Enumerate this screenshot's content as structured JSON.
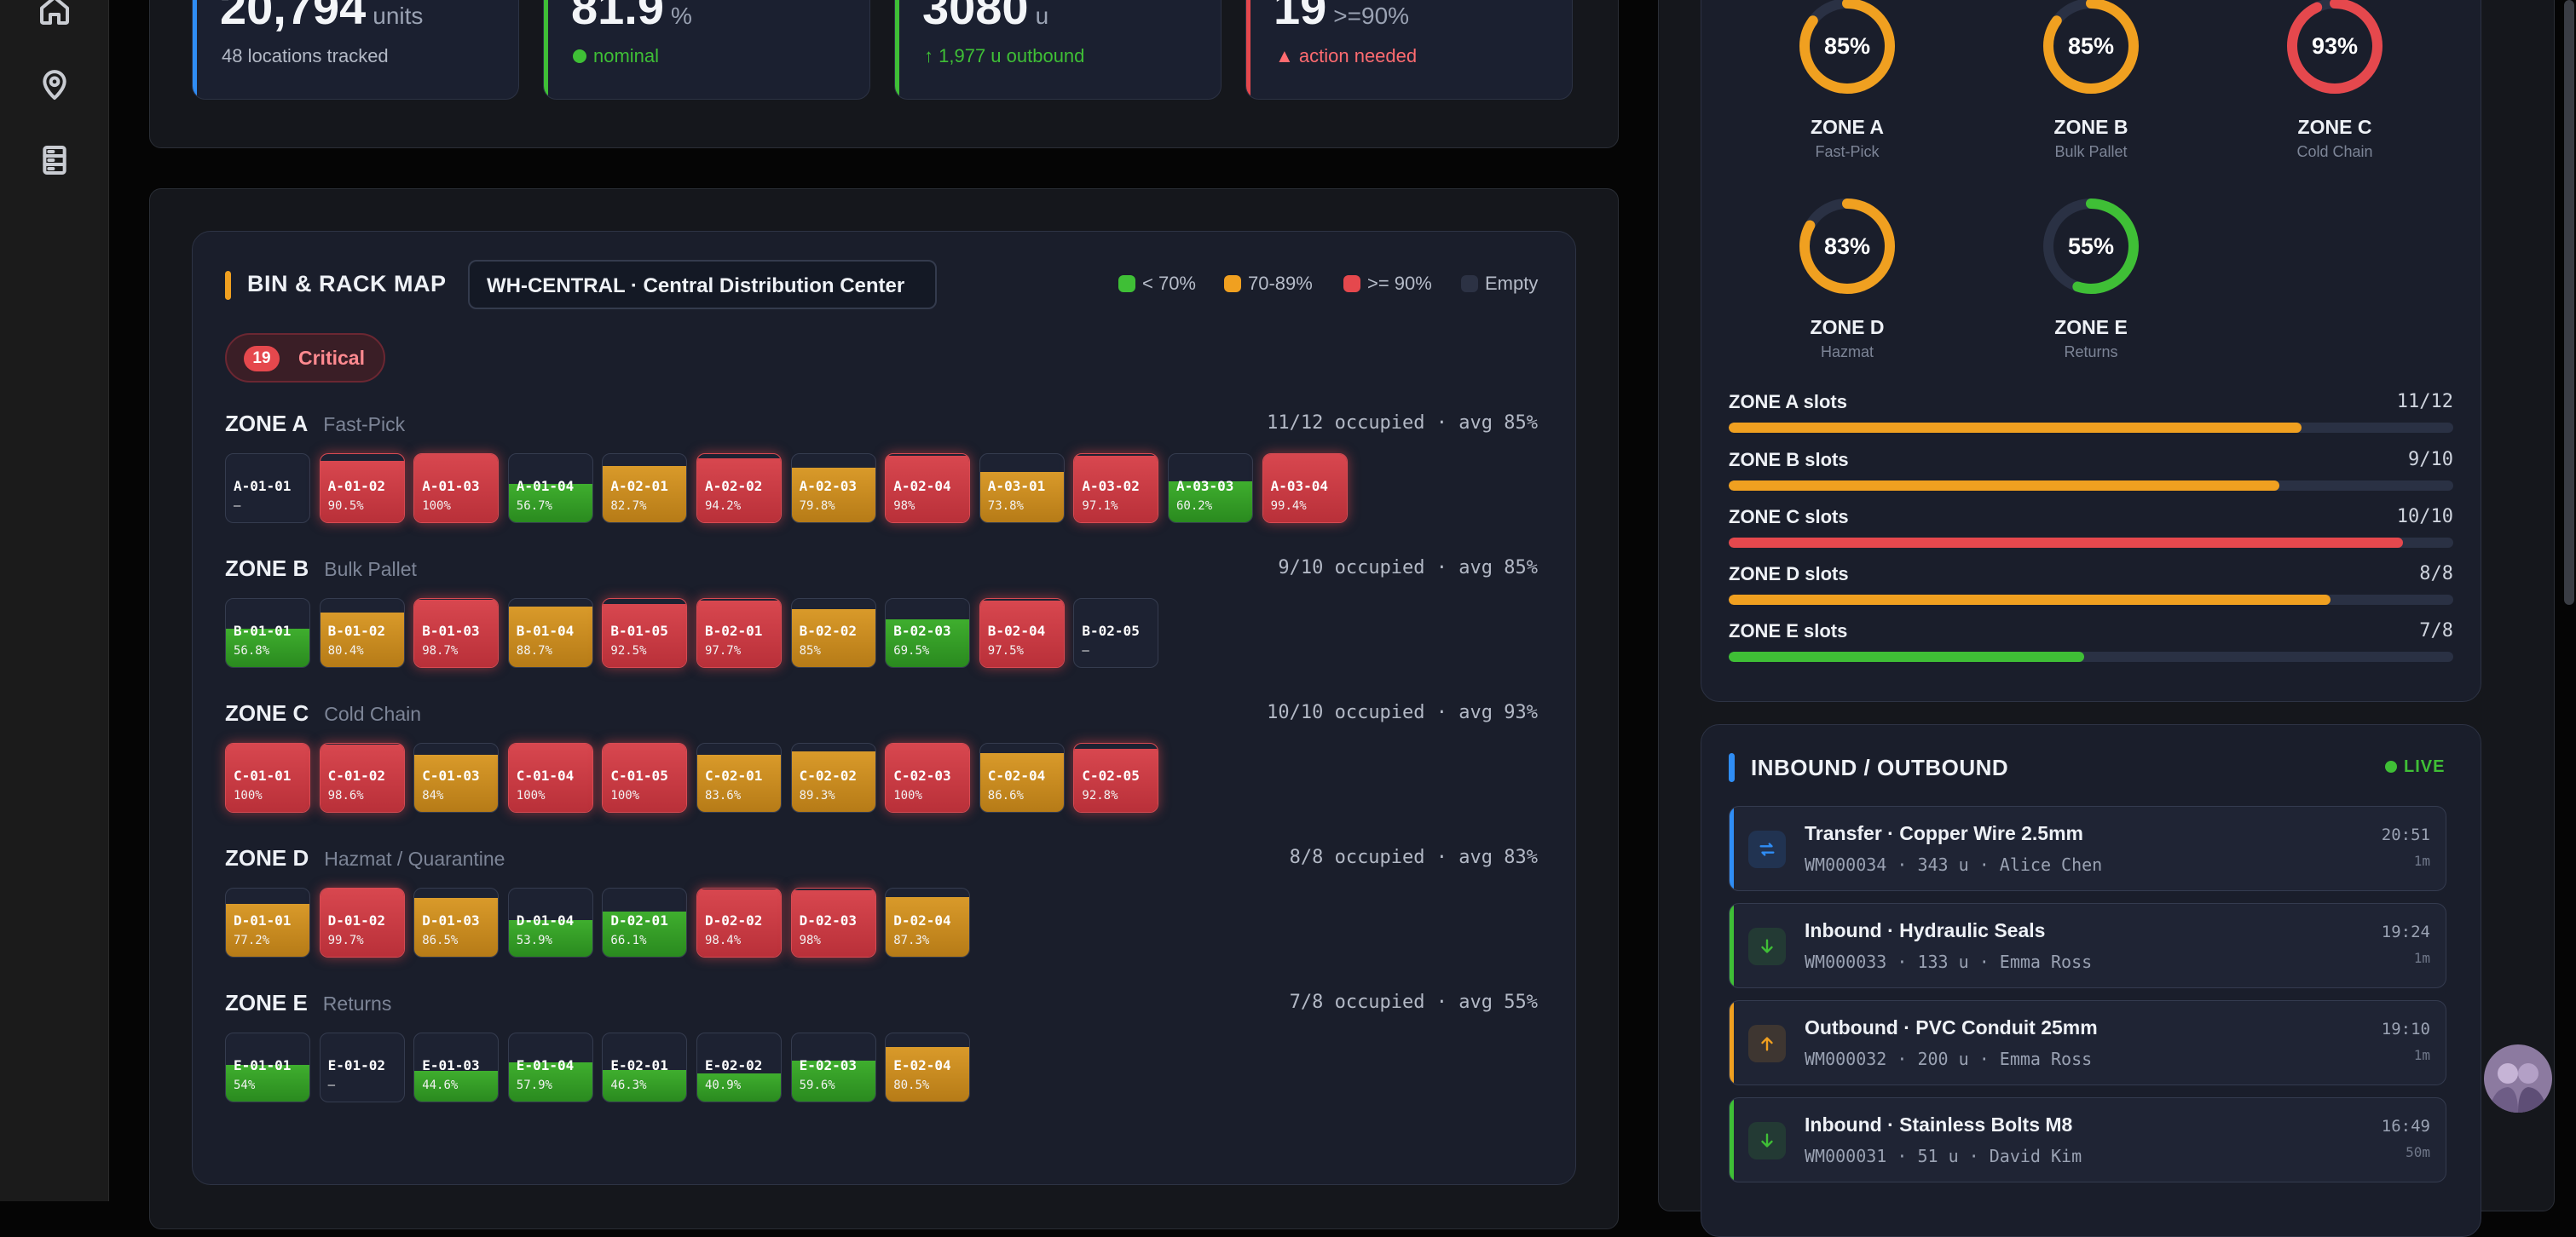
{
  "rail": {
    "icons": [
      "home-icon",
      "location-pin-icon",
      "server-rack-icon"
    ]
  },
  "stats": [
    {
      "value": "20,794",
      "unit": "units",
      "sub": "48 locations tracked",
      "accent": "#2f8df5",
      "sub_color": "#b3b9c6",
      "marker": ""
    },
    {
      "value": "81.9",
      "unit": "%",
      "sub": "nominal",
      "accent": "#3fbf36",
      "sub_color": "#3fbf36",
      "marker": "dot"
    },
    {
      "value": "3080",
      "unit": "u",
      "sub": "1,977 u outbound",
      "accent": "#3fbf36",
      "sub_color": "#3fbf36",
      "marker": "↑"
    },
    {
      "value": "19",
      "unit": ">=90%",
      "sub": "action needed",
      "accent": "#e5484d",
      "sub_color": "#ff6b70",
      "marker": "▲"
    }
  ],
  "bin_map": {
    "title": "BIN & RACK MAP",
    "warehouse": "WH-CENTRAL · Central Distribution Center",
    "legend": [
      {
        "label": "< 70%",
        "color": "#3fbf36"
      },
      {
        "label": "70-89%",
        "color": "#f0a020"
      },
      {
        "label": ">= 90%",
        "color": "#e5484d"
      },
      {
        "label": "Empty",
        "color": "#2c3244"
      }
    ],
    "critical_count": "19",
    "critical_label": "Critical",
    "zones": [
      {
        "name": "ZONE A",
        "sub": "Fast-Pick",
        "stat": "11/12 occupied · avg 85%",
        "bins": [
          {
            "code": "A-01-01",
            "pct": "–",
            "value": 0
          },
          {
            "code": "A-01-02",
            "pct": "90.5%",
            "value": 90.5
          },
          {
            "code": "A-01-03",
            "pct": "100%",
            "value": 100
          },
          {
            "code": "A-01-04",
            "pct": "56.7%",
            "value": 56.7
          },
          {
            "code": "A-02-01",
            "pct": "82.7%",
            "value": 82.7
          },
          {
            "code": "A-02-02",
            "pct": "94.2%",
            "value": 94.2
          },
          {
            "code": "A-02-03",
            "pct": "79.8%",
            "value": 79.8
          },
          {
            "code": "A-02-04",
            "pct": "98%",
            "value": 98
          },
          {
            "code": "A-03-01",
            "pct": "73.8%",
            "value": 73.8
          },
          {
            "code": "A-03-02",
            "pct": "97.1%",
            "value": 97.1
          },
          {
            "code": "A-03-03",
            "pct": "60.2%",
            "value": 60.2
          },
          {
            "code": "A-03-04",
            "pct": "99.4%",
            "value": 99.4
          }
        ]
      },
      {
        "name": "ZONE B",
        "sub": "Bulk Pallet",
        "stat": "9/10 occupied · avg 85%",
        "bins": [
          {
            "code": "B-01-01",
            "pct": "56.8%",
            "value": 56.8
          },
          {
            "code": "B-01-02",
            "pct": "80.4%",
            "value": 80.4
          },
          {
            "code": "B-01-03",
            "pct": "98.7%",
            "value": 98.7
          },
          {
            "code": "B-01-04",
            "pct": "88.7%",
            "value": 88.7
          },
          {
            "code": "B-01-05",
            "pct": "92.5%",
            "value": 92.5
          },
          {
            "code": "B-02-01",
            "pct": "97.7%",
            "value": 97.7
          },
          {
            "code": "B-02-02",
            "pct": "85%",
            "value": 85
          },
          {
            "code": "B-02-03",
            "pct": "69.5%",
            "value": 69.5
          },
          {
            "code": "B-02-04",
            "pct": "97.5%",
            "value": 97.5
          },
          {
            "code": "B-02-05",
            "pct": "–",
            "value": 0
          }
        ]
      },
      {
        "name": "ZONE C",
        "sub": "Cold Chain",
        "stat": "10/10 occupied · avg 93%",
        "bins": [
          {
            "code": "C-01-01",
            "pct": "100%",
            "value": 100
          },
          {
            "code": "C-01-02",
            "pct": "98.6%",
            "value": 98.6
          },
          {
            "code": "C-01-03",
            "pct": "84%",
            "value": 84
          },
          {
            "code": "C-01-04",
            "pct": "100%",
            "value": 100
          },
          {
            "code": "C-01-05",
            "pct": "100%",
            "value": 100
          },
          {
            "code": "C-02-01",
            "pct": "83.6%",
            "value": 83.6
          },
          {
            "code": "C-02-02",
            "pct": "89.3%",
            "value": 89.3
          },
          {
            "code": "C-02-03",
            "pct": "100%",
            "value": 100
          },
          {
            "code": "C-02-04",
            "pct": "86.6%",
            "value": 86.6
          },
          {
            "code": "C-02-05",
            "pct": "92.8%",
            "value": 92.8
          }
        ]
      },
      {
        "name": "ZONE D",
        "sub": "Hazmat / Quarantine",
        "stat": "8/8 occupied · avg 83%",
        "bins": [
          {
            "code": "D-01-01",
            "pct": "77.2%",
            "value": 77.2
          },
          {
            "code": "D-01-02",
            "pct": "99.7%",
            "value": 99.7
          },
          {
            "code": "D-01-03",
            "pct": "86.5%",
            "value": 86.5
          },
          {
            "code": "D-01-04",
            "pct": "53.9%",
            "value": 53.9
          },
          {
            "code": "D-02-01",
            "pct": "66.1%",
            "value": 66.1
          },
          {
            "code": "D-02-02",
            "pct": "98.4%",
            "value": 98.4
          },
          {
            "code": "D-02-03",
            "pct": "98%",
            "value": 98
          },
          {
            "code": "D-02-04",
            "pct": "87.3%",
            "value": 87.3
          }
        ]
      },
      {
        "name": "ZONE E",
        "sub": "Returns",
        "stat": "7/8 occupied · avg 55%",
        "bins": [
          {
            "code": "E-01-01",
            "pct": "54%",
            "value": 54
          },
          {
            "code": "E-01-02",
            "pct": "–",
            "value": 0
          },
          {
            "code": "E-01-03",
            "pct": "44.6%",
            "value": 44.6
          },
          {
            "code": "E-01-04",
            "pct": "57.9%",
            "value": 57.9
          },
          {
            "code": "E-02-01",
            "pct": "46.3%",
            "value": 46.3
          },
          {
            "code": "E-02-02",
            "pct": "40.9%",
            "value": 40.9
          },
          {
            "code": "E-02-03",
            "pct": "59.6%",
            "value": 59.6
          },
          {
            "code": "E-02-04",
            "pct": "80.5%",
            "value": 80.5
          }
        ]
      }
    ]
  },
  "zone_rings": [
    {
      "pct": "85%",
      "value": 85,
      "name": "ZONE A",
      "sub": "Fast-Pick",
      "color": "#f0a020"
    },
    {
      "pct": "85%",
      "value": 85,
      "name": "ZONE B",
      "sub": "Bulk Pallet",
      "color": "#f0a020"
    },
    {
      "pct": "93%",
      "value": 93,
      "name": "ZONE C",
      "sub": "Cold Chain",
      "color": "#e5484d"
    },
    {
      "pct": "83%",
      "value": 83,
      "name": "ZONE D",
      "sub": "Hazmat",
      "color": "#f0a020"
    },
    {
      "pct": "55%",
      "value": 55,
      "name": "ZONE E",
      "sub": "Returns",
      "color": "#3fbf36"
    }
  ],
  "slots": [
    {
      "label": "ZONE A slots",
      "count": "11/12",
      "value": 0.79,
      "color": "#f0a020"
    },
    {
      "label": "ZONE B slots",
      "count": "9/10",
      "value": 0.76,
      "color": "#f0a020"
    },
    {
      "label": "ZONE C slots",
      "count": "10/10",
      "value": 0.93,
      "color": "#e5484d"
    },
    {
      "label": "ZONE D slots",
      "count": "8/8",
      "value": 0.83,
      "color": "#f0a020"
    },
    {
      "label": "ZONE E slots",
      "count": "7/8",
      "value": 0.49,
      "color": "#3fbf36"
    }
  ],
  "io": {
    "title": "INBOUND / OUTBOUND",
    "live": "LIVE",
    "items": [
      {
        "type": "transfer",
        "icon": "transfer-arrows-icon",
        "name": "Transfer · Copper Wire 2.5mm",
        "meta": "WM000034 · 343 u · Alice Chen",
        "time": "20:51",
        "ago": "1m",
        "accent": "#2f8df5"
      },
      {
        "type": "inbound",
        "icon": "arrow-down-icon",
        "name": "Inbound · Hydraulic Seals",
        "meta": "WM000033 · 133 u · Emma Ross",
        "time": "19:24",
        "ago": "1m",
        "accent": "#3fbf36"
      },
      {
        "type": "outbound",
        "icon": "arrow-up-icon",
        "name": "Outbound · PVC Conduit 25mm",
        "meta": "WM000032 · 200 u · Emma Ross",
        "time": "19:10",
        "ago": "1m",
        "accent": "#f0a020"
      },
      {
        "type": "inbound",
        "icon": "arrow-down-icon",
        "name": "Inbound · Stainless Bolts M8",
        "meta": "WM000031 · 51 u · David Kim",
        "time": "16:49",
        "ago": "50m",
        "accent": "#3fbf36"
      }
    ]
  }
}
